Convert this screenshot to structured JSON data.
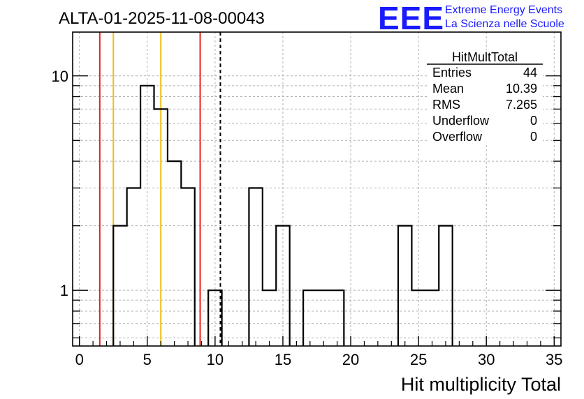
{
  "header": {
    "title": "ALTA-01-2025-11-08-00043",
    "logo_text": "EEE",
    "logo_line1": "Extreme Energy Events",
    "logo_line2": "La Scienza nelle Scuole",
    "logo_color": "#1a1aff"
  },
  "stats": {
    "name": "HitMultTotal",
    "rows": [
      {
        "label": "Entries",
        "value": "44"
      },
      {
        "label": "Mean",
        "value": "10.39"
      },
      {
        "label": "RMS",
        "value": "7.265"
      },
      {
        "label": "Underflow",
        "value": "0"
      },
      {
        "label": "Overflow",
        "value": "0"
      }
    ]
  },
  "chart_data": {
    "type": "histogram",
    "title": "ALTA-01-2025-11-08-00043",
    "xlabel": "Hit multiplicity Total",
    "ylabel": "",
    "xlim": [
      -0.5,
      35.5
    ],
    "ylim": [
      0.55,
      16
    ],
    "yscale": "log",
    "grid": true,
    "bin_width": 1,
    "bins": [
      {
        "x": 3,
        "count": 2
      },
      {
        "x": 4,
        "count": 3
      },
      {
        "x": 5,
        "count": 9
      },
      {
        "x": 6,
        "count": 7
      },
      {
        "x": 7,
        "count": 4
      },
      {
        "x": 8,
        "count": 3
      },
      {
        "x": 10,
        "count": 1
      },
      {
        "x": 13,
        "count": 3
      },
      {
        "x": 14,
        "count": 1
      },
      {
        "x": 15,
        "count": 2
      },
      {
        "x": 17,
        "count": 1
      },
      {
        "x": 18,
        "count": 1
      },
      {
        "x": 19,
        "count": 1
      },
      {
        "x": 24,
        "count": 2
      },
      {
        "x": 25,
        "count": 1
      },
      {
        "x": 26,
        "count": 1
      },
      {
        "x": 27,
        "count": 2
      }
    ],
    "x_ticks": [
      0,
      5,
      10,
      15,
      20,
      25,
      30,
      35
    ],
    "y_ticks": [
      1,
      10
    ],
    "vertical_lines": [
      {
        "x": 1.5,
        "color": "#e8211d",
        "style": "solid"
      },
      {
        "x": 2.5,
        "color": "#f0c010",
        "style": "solid"
      },
      {
        "x": 6.0,
        "color": "#f0c010",
        "style": "solid"
      },
      {
        "x": 8.9,
        "color": "#e8211d",
        "style": "solid"
      },
      {
        "x": 10.39,
        "color": "#000000",
        "style": "dashed"
      }
    ]
  }
}
